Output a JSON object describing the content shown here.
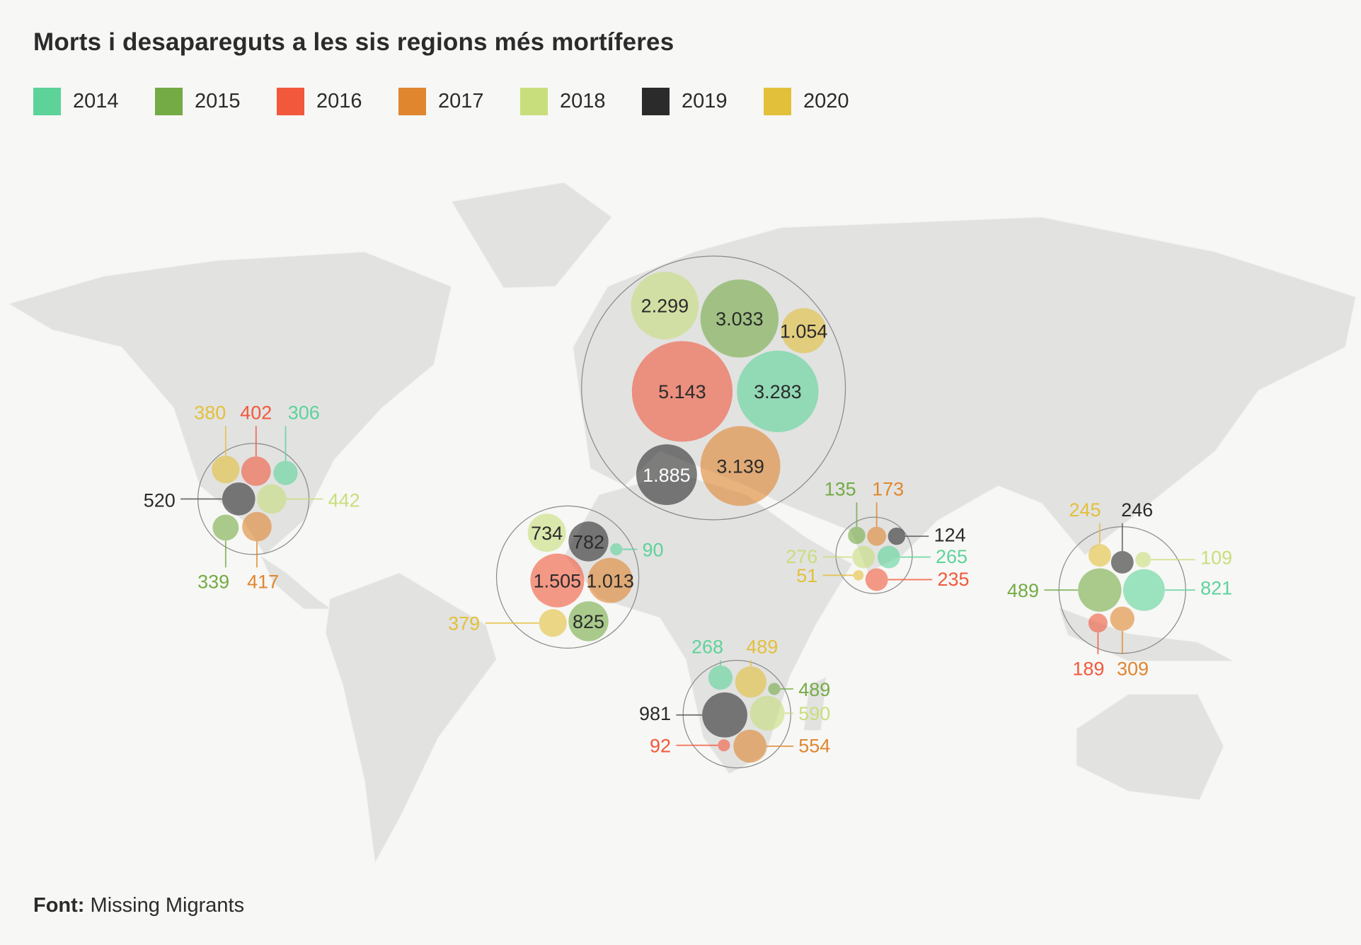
{
  "title": "Morts i desapareguts a les sis regions més mortíferes",
  "legend": [
    {
      "year": "2014",
      "color": "#5dd39a"
    },
    {
      "year": "2015",
      "color": "#74ab45"
    },
    {
      "year": "2016",
      "color": "#f2583c"
    },
    {
      "year": "2017",
      "color": "#e0862f"
    },
    {
      "year": "2018",
      "color": "#c8de7c"
    },
    {
      "year": "2019",
      "color": "#2b2b2b"
    },
    {
      "year": "2020",
      "color": "#e2c03a"
    }
  ],
  "regions": [
    {
      "id": "us-mexico",
      "bubbles": [
        {
          "year": "2020",
          "value": "380"
        },
        {
          "year": "2016",
          "value": "402"
        },
        {
          "year": "2014",
          "value": "306"
        },
        {
          "year": "2019",
          "value": "520"
        },
        {
          "year": "2018",
          "value": "442"
        },
        {
          "year": "2015",
          "value": "339"
        },
        {
          "year": "2017",
          "value": "417"
        }
      ]
    },
    {
      "id": "mediterranean",
      "bubbles": [
        {
          "year": "2018",
          "value": "2.299"
        },
        {
          "year": "2015",
          "value": "3.033"
        },
        {
          "year": "2020",
          "value": "1.054"
        },
        {
          "year": "2016",
          "value": "5.143"
        },
        {
          "year": "2014",
          "value": "3.283"
        },
        {
          "year": "2019",
          "value": "1.885"
        },
        {
          "year": "2017",
          "value": "3.139"
        }
      ]
    },
    {
      "id": "west-africa",
      "bubbles": [
        {
          "year": "2018",
          "value": "734"
        },
        {
          "year": "2019",
          "value": "782"
        },
        {
          "year": "2014",
          "value": "90"
        },
        {
          "year": "2016",
          "value": "1.505"
        },
        {
          "year": "2017",
          "value": "1.013"
        },
        {
          "year": "2020",
          "value": "379"
        },
        {
          "year": "2015",
          "value": "825"
        }
      ]
    },
    {
      "id": "southern-africa",
      "bubbles": [
        {
          "year": "2014",
          "value": "268"
        },
        {
          "year": "2020",
          "value": "489"
        },
        {
          "year": "2015",
          "value": "489"
        },
        {
          "year": "2019",
          "value": "981"
        },
        {
          "year": "2018",
          "value": "590"
        },
        {
          "year": "2016",
          "value": "92"
        },
        {
          "year": "2017",
          "value": "554"
        }
      ]
    },
    {
      "id": "south-asia",
      "bubbles": [
        {
          "year": "2015",
          "value": "135"
        },
        {
          "year": "2017",
          "value": "173"
        },
        {
          "year": "2019",
          "value": "124"
        },
        {
          "year": "2018",
          "value": "276"
        },
        {
          "year": "2014",
          "value": "265"
        },
        {
          "year": "2020",
          "value": "51"
        },
        {
          "year": "2016",
          "value": "235"
        }
      ]
    },
    {
      "id": "southeast-asia",
      "bubbles": [
        {
          "year": "2020",
          "value": "245"
        },
        {
          "year": "2019",
          "value": "246"
        },
        {
          "year": "2018",
          "value": "109"
        },
        {
          "year": "2015",
          "value": "489"
        },
        {
          "year": "2014",
          "value": "821"
        },
        {
          "year": "2016",
          "value": "189"
        },
        {
          "year": "2017",
          "value": "309"
        }
      ]
    }
  ],
  "footer": {
    "label": "Font:",
    "source": "Missing Migrants"
  }
}
